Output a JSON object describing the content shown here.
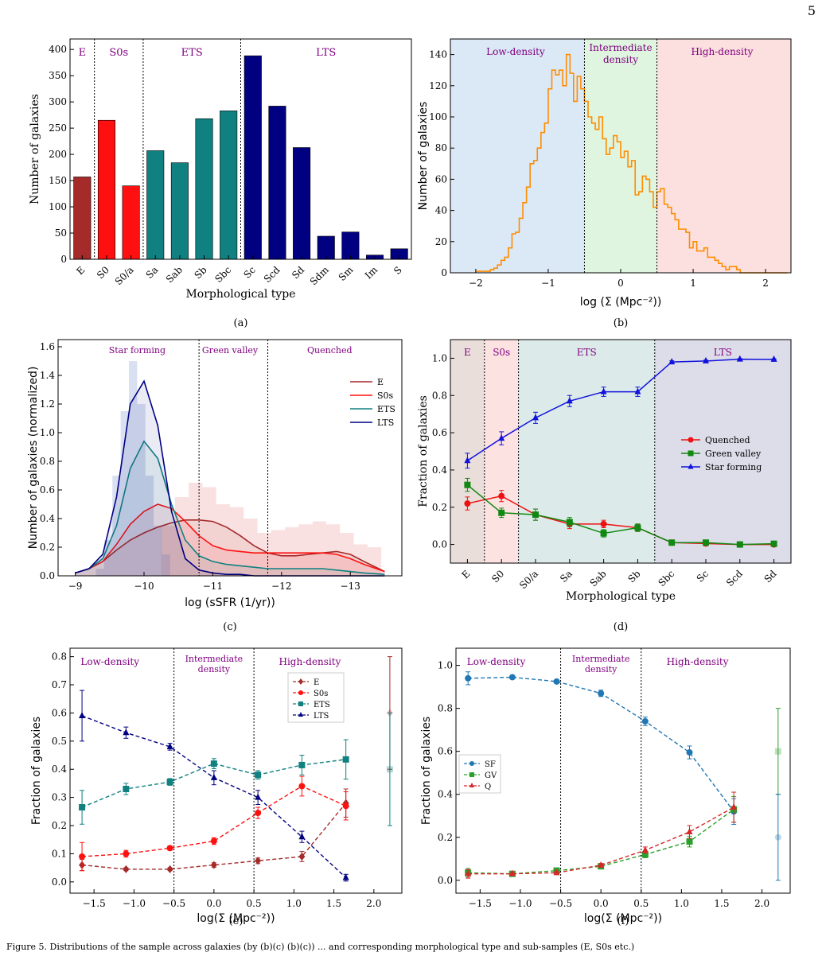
{
  "page_number": "5",
  "caption": "Figure 5. Distributions of the sample across galaxies (by (b)(c) (b)(c)) ... and corresponding morphological type and sub-samples (E, S0s etc.)",
  "colors": {
    "E": "#a52a2a",
    "S0s": "#ff1010",
    "ETS": "#108080",
    "LTS": "#000080",
    "quenched": "#ee1111",
    "green": "#118811",
    "sf": "#1111dd",
    "orange": "#ff8c00",
    "label": "#800080",
    "bg_blue": "#dbe9f7",
    "bg_green": "#dff5df",
    "bg_red": "#fbe0df",
    "bg_brown": "#eadedb",
    "bg_pink": "#fde2e2",
    "bg_teal": "#dcebe9",
    "bg_navy": "#dcdde9",
    "sf_dash": "#1f77b4",
    "gv_dash": "#2ca02c",
    "q_dash": "#d62728"
  },
  "chart_data": [
    {
      "panel": "(a)",
      "type": "bar",
      "xlabel": "Morphological type",
      "ylabel": "Number of galaxies",
      "ylim": [
        0,
        420
      ],
      "yticks": [
        "0",
        "50",
        "100",
        "150",
        "200",
        "250",
        "300",
        "350",
        "400"
      ],
      "regions": [
        "E",
        "S0s",
        "ETS",
        "LTS"
      ],
      "categories": [
        "E",
        "S0",
        "S0/a",
        "Sa",
        "Sab",
        "Sb",
        "Sbc",
        "Sc",
        "Scd",
        "Sd",
        "Sdm",
        "Sm",
        "Im",
        "S"
      ],
      "values": [
        157,
        265,
        140,
        207,
        184,
        268,
        283,
        388,
        292,
        213,
        44,
        52,
        8,
        20
      ],
      "groups": [
        "E",
        "S0s",
        "S0s",
        "ETS",
        "ETS",
        "ETS",
        "ETS",
        "LTS",
        "LTS",
        "LTS",
        "LTS",
        "LTS",
        "LTS",
        "LTS"
      ]
    },
    {
      "panel": "(b)",
      "type": "step",
      "xlabel": "log (Σ (Mpc⁻²))",
      "ylabel": "Number of galaxies",
      "xlim": [
        -2.35,
        2.35
      ],
      "ylim": [
        0,
        150
      ],
      "xticks": [
        "−2",
        "−1",
        "0",
        "1",
        "2"
      ],
      "yticks": [
        "0",
        "20",
        "40",
        "60",
        "80",
        "100",
        "120",
        "140"
      ],
      "regions": [
        "Low-density",
        "Intermediate density",
        "High-density"
      ],
      "bin_edges_start": -2.0,
      "bin_width": 0.05,
      "counts": [
        1,
        1,
        1,
        1,
        2,
        3,
        5,
        8,
        10,
        16,
        25,
        26,
        35,
        45,
        55,
        70,
        72,
        80,
        90,
        96,
        118,
        130,
        127,
        130,
        120,
        140,
        128,
        110,
        126,
        118,
        110,
        100,
        96,
        92,
        100,
        86,
        76,
        80,
        88,
        84,
        74,
        78,
        68,
        72,
        50,
        52,
        62,
        60,
        52,
        42,
        52,
        54,
        44,
        42,
        38,
        34,
        28,
        28,
        26,
        16,
        20,
        14,
        14,
        16,
        10,
        10,
        8,
        6,
        4,
        2,
        4,
        4,
        2,
        0,
        0,
        0,
        0,
        0,
        0,
        0,
        0,
        0,
        0,
        0,
        0,
        0
      ]
    },
    {
      "panel": "(c)",
      "type": "kde",
      "xlabel": "log (sSFR (1/yr))",
      "ylabel": "Number of galaxies (normalized)",
      "xlim": [
        -8.75,
        -13.75
      ],
      "ylim": [
        0,
        1.65
      ],
      "xticks": [
        "−9",
        "−10",
        "−11",
        "−12",
        "−13"
      ],
      "yticks": [
        "0.0",
        "0.2",
        "0.4",
        "0.6",
        "0.8",
        "1.0",
        "1.2",
        "1.4",
        "1.6"
      ],
      "regions": [
        "Star forming",
        "Green valley",
        "Quenched"
      ],
      "x": [
        -9.0,
        -9.2,
        -9.4,
        -9.6,
        -9.8,
        -10.0,
        -10.2,
        -10.4,
        -10.6,
        -10.8,
        -11.0,
        -11.2,
        -11.4,
        -11.6,
        -11.8,
        -12.0,
        -12.2,
        -12.4,
        -12.6,
        -12.8,
        -13.0,
        -13.2,
        -13.5
      ],
      "series": [
        {
          "name": "E",
          "values": [
            0.02,
            0.05,
            0.1,
            0.18,
            0.25,
            0.3,
            0.34,
            0.37,
            0.39,
            0.39,
            0.38,
            0.34,
            0.28,
            0.21,
            0.16,
            0.14,
            0.14,
            0.15,
            0.16,
            0.17,
            0.15,
            0.1,
            0.03
          ]
        },
        {
          "name": "S0s",
          "values": [
            0.02,
            0.05,
            0.1,
            0.22,
            0.36,
            0.45,
            0.5,
            0.47,
            0.38,
            0.28,
            0.21,
            0.18,
            0.17,
            0.16,
            0.16,
            0.16,
            0.16,
            0.16,
            0.16,
            0.15,
            0.12,
            0.08,
            0.03
          ]
        },
        {
          "name": "ETS",
          "values": [
            0.02,
            0.05,
            0.12,
            0.35,
            0.75,
            0.94,
            0.82,
            0.5,
            0.25,
            0.14,
            0.1,
            0.08,
            0.07,
            0.06,
            0.05,
            0.05,
            0.05,
            0.05,
            0.05,
            0.04,
            0.03,
            0.02,
            0.01
          ]
        },
        {
          "name": "LTS",
          "values": [
            0.02,
            0.05,
            0.15,
            0.55,
            1.2,
            1.36,
            1.05,
            0.45,
            0.12,
            0.04,
            0.02,
            0.01,
            0.01,
            0.0,
            0.0,
            0.0,
            0.0,
            0.0,
            0.0,
            0.0,
            0.0,
            0.0,
            0.0
          ]
        }
      ]
    },
    {
      "panel": "(d)",
      "type": "line",
      "xlabel": "Morphological type",
      "ylabel": "Fraction of galaxies",
      "ylim": [
        -0.1,
        1.1
      ],
      "yticks": [
        "0.0",
        "0.2",
        "0.4",
        "0.6",
        "0.8",
        "1.0"
      ],
      "regions": [
        "E",
        "S0s",
        "ETS",
        "LTS"
      ],
      "categories": [
        "E",
        "S0",
        "S0/a",
        "Sa",
        "Sab",
        "Sb",
        "Sbc",
        "Sc",
        "Scd",
        "Sd"
      ],
      "series": [
        {
          "name": "Quenched",
          "values": [
            0.22,
            0.26,
            0.16,
            0.11,
            0.11,
            0.09,
            0.01,
            0.005,
            0.0,
            0.0
          ],
          "err": [
            0.035,
            0.03,
            0.03,
            0.025,
            0.02,
            0.02,
            0.005,
            0.005,
            0.003,
            0.003
          ]
        },
        {
          "name": "Green valley",
          "values": [
            0.32,
            0.17,
            0.16,
            0.12,
            0.06,
            0.09,
            0.01,
            0.01,
            0.0,
            0.004
          ],
          "err": [
            0.035,
            0.025,
            0.03,
            0.025,
            0.02,
            0.02,
            0.005,
            0.005,
            0.003,
            0.003
          ]
        },
        {
          "name": "Star forming",
          "values": [
            0.45,
            0.57,
            0.68,
            0.77,
            0.82,
            0.82,
            0.98,
            0.985,
            0.995,
            0.994
          ],
          "err": [
            0.04,
            0.035,
            0.03,
            0.03,
            0.025,
            0.025,
            0.006,
            0.005,
            0.003,
            0.003
          ]
        }
      ]
    },
    {
      "panel": "(e)",
      "type": "line",
      "xlabel": "log(Σ (Mpc⁻²))",
      "ylabel": "Fraction of galaxies",
      "xlim": [
        -1.8,
        2.35
      ],
      "ylim": [
        -0.04,
        0.83
      ],
      "xticks": [
        "−1.5",
        "−1.0",
        "−0.5",
        "0.0",
        "0.5",
        "1.0",
        "1.5",
        "2.0"
      ],
      "yticks": [
        "0.0",
        "0.1",
        "0.2",
        "0.3",
        "0.4",
        "0.5",
        "0.6",
        "0.7",
        "0.8"
      ],
      "regions": [
        "Low-density",
        "Intermediate density",
        "High-density"
      ],
      "x": [
        -1.65,
        -1.1,
        -0.55,
        0.0,
        0.55,
        1.1,
        1.65
      ],
      "series": [
        {
          "name": "E",
          "values": [
            0.06,
            0.045,
            0.045,
            0.06,
            0.075,
            0.09,
            0.28
          ],
          "err": [
            0.02,
            0.005,
            0.005,
            0.008,
            0.01,
            0.018,
            0.05
          ]
        },
        {
          "name": "S0s",
          "values": [
            0.09,
            0.1,
            0.12,
            0.145,
            0.245,
            0.34,
            0.27
          ],
          "err": [
            0.05,
            0.012,
            0.008,
            0.012,
            0.02,
            0.035,
            0.05
          ]
        },
        {
          "name": "ETS",
          "values": [
            0.265,
            0.33,
            0.355,
            0.42,
            0.38,
            0.415,
            0.435
          ],
          "err": [
            0.06,
            0.02,
            0.012,
            0.018,
            0.015,
            0.035,
            0.07
          ]
        },
        {
          "name": "LTS",
          "values": [
            0.59,
            0.53,
            0.48,
            0.37,
            0.3,
            0.16,
            0.015
          ],
          "err": [
            0.09,
            0.02,
            0.012,
            0.025,
            0.025,
            0.02,
            0.012
          ]
        }
      ],
      "outliers_x": 2.2,
      "outliers": [
        {
          "name": "E",
          "value": 0.6,
          "err": 0.2
        },
        {
          "name": "ETS",
          "value": 0.4,
          "err": 0.2
        }
      ]
    },
    {
      "panel": "(f)",
      "type": "line",
      "xlabel": "log(Σ (Mpc⁻²))",
      "ylabel": "Fraction of galaxies",
      "xlim": [
        -1.8,
        2.35
      ],
      "ylim": [
        -0.06,
        1.08
      ],
      "xticks": [
        "−1.5",
        "−1.0",
        "−0.5",
        "0.0",
        "0.5",
        "1.0",
        "1.5",
        "2.0"
      ],
      "yticks": [
        "0.0",
        "0.2",
        "0.4",
        "0.6",
        "0.8",
        "1.0"
      ],
      "regions": [
        "Low-density",
        "Intermediate density",
        "High-density"
      ],
      "x": [
        -1.65,
        -1.1,
        -0.55,
        0.0,
        0.55,
        1.1,
        1.65
      ],
      "series": [
        {
          "name": "SF",
          "values": [
            0.94,
            0.945,
            0.925,
            0.87,
            0.74,
            0.595,
            0.32
          ],
          "err": [
            0.03,
            0.008,
            0.006,
            0.015,
            0.02,
            0.03,
            0.06
          ]
        },
        {
          "name": "GV",
          "values": [
            0.035,
            0.03,
            0.045,
            0.065,
            0.12,
            0.18,
            0.33
          ],
          "err": [
            0.02,
            0.008,
            0.006,
            0.008,
            0.015,
            0.025,
            0.06
          ]
        },
        {
          "name": "Q",
          "values": [
            0.03,
            0.03,
            0.035,
            0.07,
            0.14,
            0.225,
            0.34
          ],
          "err": [
            0.02,
            0.008,
            0.006,
            0.008,
            0.015,
            0.03,
            0.07
          ]
        }
      ],
      "outliers_x": 2.2,
      "outliers": [
        {
          "name": "GV",
          "value": 0.6,
          "err": 0.2
        },
        {
          "name": "SF",
          "value": 0.2,
          "err": 0.2
        }
      ]
    }
  ]
}
